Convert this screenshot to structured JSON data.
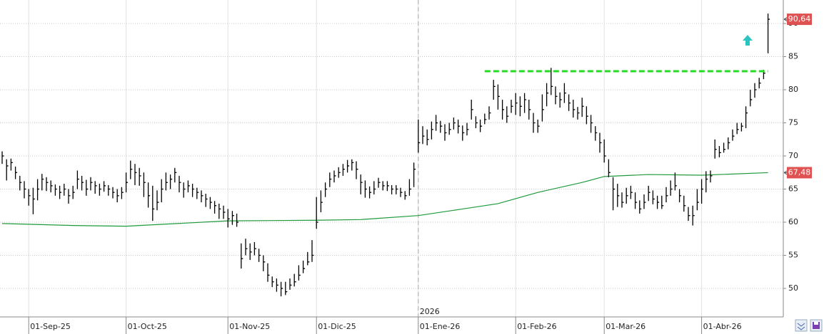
{
  "chart_data": {
    "type": "ohlc",
    "categories": [
      "2025-08-22",
      "2025-08-25",
      "2025-08-26",
      "2025-08-27",
      "2025-08-28",
      "2025-08-29",
      "2025-09-01",
      "2025-09-02",
      "2025-09-03",
      "2025-09-04",
      "2025-09-05",
      "2025-09-08",
      "2025-09-09",
      "2025-09-10",
      "2025-09-11",
      "2025-09-12",
      "2025-09-15",
      "2025-09-16",
      "2025-09-17",
      "2025-09-18",
      "2025-09-19",
      "2025-09-22",
      "2025-09-23",
      "2025-09-24",
      "2025-09-25",
      "2025-09-26",
      "2025-09-29",
      "2025-09-30",
      "2025-10-01",
      "2025-10-02",
      "2025-10-03",
      "2025-10-06",
      "2025-10-07",
      "2025-10-08",
      "2025-10-09",
      "2025-10-10",
      "2025-10-13",
      "2025-10-14",
      "2025-10-15",
      "2025-10-16",
      "2025-10-17",
      "2025-10-20",
      "2025-10-21",
      "2025-10-22",
      "2025-10-23",
      "2025-10-24",
      "2025-10-27",
      "2025-10-28",
      "2025-10-29",
      "2025-10-30",
      "2025-10-31",
      "2025-11-03",
      "2025-11-04",
      "2025-11-05",
      "2025-11-06",
      "2025-11-07",
      "2025-11-10",
      "2025-11-11",
      "2025-11-12",
      "2025-11-13",
      "2025-11-14",
      "2025-11-17",
      "2025-11-18",
      "2025-11-19",
      "2025-11-20",
      "2025-11-21",
      "2025-11-24",
      "2025-11-25",
      "2025-11-26",
      "2025-11-27",
      "2025-11-28",
      "2025-12-01",
      "2025-12-02",
      "2025-12-03",
      "2025-12-04",
      "2025-12-05",
      "2025-12-08",
      "2025-12-09",
      "2025-12-10",
      "2025-12-11",
      "2025-12-12",
      "2025-12-15",
      "2025-12-16",
      "2025-12-17",
      "2025-12-18",
      "2025-12-19",
      "2025-12-22",
      "2025-12-23",
      "2025-12-24",
      "2025-12-25",
      "2025-12-26",
      "2025-12-29",
      "2025-12-30",
      "2025-12-31",
      "2026-01-01",
      "2026-01-02",
      "2026-01-05",
      "2026-01-06",
      "2026-01-07",
      "2026-01-08",
      "2026-01-09",
      "2026-01-12",
      "2026-01-13",
      "2026-01-14",
      "2026-01-15",
      "2026-01-16",
      "2026-01-19",
      "2026-01-20",
      "2026-01-21",
      "2026-01-22",
      "2026-01-23",
      "2026-01-26",
      "2026-01-27",
      "2026-01-28",
      "2026-01-29",
      "2026-01-30",
      "2026-02-02",
      "2026-02-03",
      "2026-02-04",
      "2026-02-05",
      "2026-02-06",
      "2026-02-09",
      "2026-02-10",
      "2026-02-11",
      "2026-02-12",
      "2026-02-13",
      "2026-02-16",
      "2026-02-17",
      "2026-02-18",
      "2026-02-19",
      "2026-02-20",
      "2026-02-23",
      "2026-02-24",
      "2026-02-25",
      "2026-02-26",
      "2026-02-27",
      "2026-03-02",
      "2026-03-03",
      "2026-03-04",
      "2026-03-05",
      "2026-03-06",
      "2026-03-09",
      "2026-03-10",
      "2026-03-11",
      "2026-03-12",
      "2026-03-13",
      "2026-03-16",
      "2026-03-17",
      "2026-03-18",
      "2026-03-19",
      "2026-03-20",
      "2026-03-23",
      "2026-03-24",
      "2026-03-25",
      "2026-03-26",
      "2026-03-27",
      "2026-03-30",
      "2026-03-31",
      "2026-04-01",
      "2026-04-02",
      "2026-04-03",
      "2026-04-06",
      "2026-04-07",
      "2026-04-08",
      "2026-04-09",
      "2026-04-10",
      "2026-04-13",
      "2026-04-14",
      "2026-04-15",
      "2026-04-16",
      "2026-04-17",
      "2026-04-20",
      "2026-04-21",
      "2026-04-22"
    ],
    "price": {
      "color": "#000000",
      "high": [
        70.7,
        69.5,
        69.6,
        68.4,
        67,
        66.2,
        65,
        65.2,
        66.5,
        67.3,
        66.8,
        66.3,
        65.7,
        65.5,
        65.8,
        65,
        65.5,
        67.8,
        67,
        66.4,
        66.8,
        66.2,
        65.8,
        66.2,
        65.6,
        65.3,
        65,
        65.3,
        67.5,
        69.3,
        68.8,
        68.2,
        67.5,
        66,
        65.5,
        64.8,
        66.5,
        67.5,
        67.2,
        68.2,
        67,
        66,
        66.3,
        65.8,
        65.2,
        64.8,
        64.3,
        63.8,
        63.2,
        62.8,
        62.5,
        62,
        61.7,
        61.3,
        56.8,
        57.5,
        56.8,
        57,
        56,
        55,
        53.8,
        51.8,
        51.5,
        51,
        51,
        51.5,
        52.2,
        53.5,
        54.2,
        55.5,
        57.3,
        63.8,
        64.8,
        66,
        67.5,
        67.8,
        68.3,
        68.8,
        69.4,
        69.5,
        69.2,
        67.2,
        66.3,
        65.4,
        66.2,
        66.7,
        66.2,
        66.2,
        65.6,
        65.6,
        65.2,
        64.7,
        66.5,
        69,
        75.5,
        74.5,
        74,
        75.2,
        76.2,
        75.3,
        74.8,
        75,
        75.8,
        75.5,
        74.6,
        75,
        78.5,
        76,
        75.5,
        76.4,
        77.5,
        81.5,
        80.8,
        78.5,
        77.5,
        78.5,
        79.5,
        79,
        79.5,
        78.5,
        76.5,
        75.5,
        79.3,
        81,
        83.3,
        80.5,
        79.6,
        81,
        79.3,
        78.5,
        77.4,
        78.8,
        77.5,
        76.2,
        74.5,
        73.5,
        72.5,
        69.5,
        66.8,
        65.8,
        64.5,
        65.2,
        65.5,
        64.5,
        63.3,
        64.2,
        65.5,
        64.8,
        64,
        64,
        65.3,
        66.3,
        67.5,
        65,
        64,
        62.3,
        62.5,
        65,
        66.5,
        67.7,
        67.8,
        72.5,
        71.5,
        72,
        72.8,
        74,
        75,
        75,
        77.5,
        80,
        81,
        81.8,
        83,
        91.5
      ],
      "low": [
        68.8,
        66.3,
        67.8,
        66.5,
        64.8,
        63.6,
        62.5,
        61.2,
        63.3,
        64.8,
        64.7,
        64.5,
        64,
        63.5,
        64,
        62.8,
        63.5,
        65,
        64.8,
        64,
        64.8,
        64.3,
        64,
        64.6,
        64,
        63.6,
        63,
        63.5,
        64.5,
        66.5,
        65.6,
        65.5,
        63.8,
        62.2,
        60.2,
        61.8,
        63,
        64.8,
        65,
        66,
        64.5,
        63.7,
        64.5,
        63.8,
        63.5,
        63,
        62.3,
        62,
        61.3,
        60.5,
        60.5,
        59.2,
        59.6,
        59.3,
        53,
        55,
        54.3,
        55,
        54,
        52.6,
        51,
        50.2,
        49.5,
        48.8,
        49,
        49.8,
        50.3,
        51.2,
        52.3,
        53.5,
        54,
        59,
        61.5,
        63.8,
        65.3,
        66,
        66.7,
        67,
        67.5,
        67.8,
        66.5,
        64.2,
        63.7,
        63.6,
        64.2,
        65.2,
        64.8,
        64.7,
        64.2,
        64.2,
        63.8,
        63.4,
        64,
        65.3,
        70.5,
        71.8,
        71.6,
        72.5,
        73.8,
        73.5,
        72.3,
        73.2,
        74,
        73.4,
        72.3,
        73.1,
        75.5,
        74.2,
        73.6,
        74.8,
        75.5,
        78.5,
        77,
        75.5,
        75,
        76.5,
        76.2,
        76,
        76.5,
        75.5,
        73.5,
        73.5,
        75.2,
        77.5,
        79.2,
        77.8,
        77.3,
        78,
        76.8,
        75.8,
        75.5,
        75.9,
        74.8,
        73.5,
        72.3,
        70.5,
        69,
        66.8,
        61.8,
        62.3,
        62.2,
        62.8,
        63.5,
        62,
        61.3,
        62,
        63.2,
        62.7,
        62,
        62,
        63,
        64,
        64.8,
        63,
        61.6,
        60.2,
        59.5,
        61.8,
        62.8,
        64.5,
        66,
        69.6,
        69.8,
        70.5,
        71,
        72.3,
        73.3,
        73.7,
        74.2,
        77.5,
        78.8,
        80.2,
        81.6,
        85.5
      ],
      "close": [
        70,
        68.5,
        69,
        67.5,
        66,
        65,
        64,
        63.5,
        65,
        66.5,
        66,
        65.5,
        65,
        64.5,
        65,
        64,
        64.5,
        66.5,
        66,
        65,
        66,
        65.5,
        65,
        65.5,
        65,
        64.5,
        64,
        64.5,
        66,
        68,
        67.5,
        67,
        66,
        64,
        62,
        63,
        65,
        66,
        66.5,
        67.5,
        66,
        65,
        65.5,
        65,
        64.5,
        64,
        63.5,
        63,
        62.5,
        62,
        61.5,
        60.5,
        61,
        60,
        54.5,
        56,
        55.5,
        56,
        55,
        54,
        52,
        51,
        50.5,
        50,
        49.5,
        50.5,
        51,
        52,
        53,
        54,
        55,
        60,
        63,
        65,
        66.5,
        67,
        67.5,
        68,
        68.5,
        69,
        68,
        66,
        65,
        64.5,
        65,
        66,
        65.5,
        65.5,
        65,
        65,
        64.5,
        64,
        65,
        68,
        72,
        73,
        72.5,
        74,
        75,
        74.5,
        73.5,
        74,
        75,
        74.5,
        73.5,
        74,
        77,
        75,
        74.5,
        75.5,
        76.5,
        80.5,
        79,
        77,
        76,
        77.5,
        78,
        77.5,
        78.5,
        77,
        75,
        74.5,
        77,
        79.5,
        80.5,
        79,
        78.5,
        79.5,
        78,
        77,
        76.5,
        77.5,
        76,
        75,
        73.5,
        72,
        70,
        67.5,
        65,
        64,
        63,
        64,
        64.5,
        63,
        62,
        63,
        64.5,
        63.5,
        63,
        62.5,
        64,
        65,
        65.5,
        64,
        62.5,
        61,
        61,
        63,
        65,
        66.5,
        67,
        71,
        70.5,
        71,
        72,
        73,
        74,
        74.5,
        76.5,
        78.5,
        80,
        81,
        82.5,
        90.64
      ],
      "last_label": "90,64",
      "label_color": "#e05252"
    },
    "ma": {
      "color": "#1e9a3c",
      "x": [
        "2025-08-22",
        "2025-09-15",
        "2025-10-01",
        "2025-11-03",
        "2025-12-01",
        "2025-12-15",
        "2026-01-01",
        "2026-01-15",
        "2026-01-27",
        "2026-02-09",
        "2026-02-23",
        "2026-03-02",
        "2026-03-16",
        "2026-04-01",
        "2026-04-22"
      ],
      "values": [
        59.8,
        59.5,
        59.4,
        60.2,
        60.3,
        60.4,
        61,
        62,
        62.8,
        64.5,
        66,
        66.9,
        67.2,
        67.1,
        67.48
      ],
      "last_label": "67,48",
      "label_color": "#e05252"
    },
    "resistance": {
      "value": 82.8,
      "x": [
        "2026-01-22",
        "2026-04-22"
      ],
      "color": "#22dd22"
    },
    "year_marker": {
      "x": "2026-01-01",
      "label": "2026"
    },
    "xticks": [
      {
        "value": "2025-09-01",
        "label": "01-Sep-25"
      },
      {
        "value": "2025-10-01",
        "label": "01-Oct-25"
      },
      {
        "value": "2025-11-03",
        "label": "01-Nov-25"
      },
      {
        "value": "2025-12-01",
        "label": "01-Dic-25"
      },
      {
        "value": "2026-01-01",
        "label": "01-Ene-26"
      },
      {
        "value": "2026-02-02",
        "label": "01-Feb-26"
      },
      {
        "value": "2026-03-02",
        "label": "01-Mar-26"
      },
      {
        "value": "2026-04-01",
        "label": "01-Abr-26"
      }
    ],
    "ylim": [
      45.7,
      93.55
    ],
    "yticks": [
      50,
      55,
      60,
      65,
      70,
      75,
      80,
      85,
      90
    ],
    "grid": true
  }
}
